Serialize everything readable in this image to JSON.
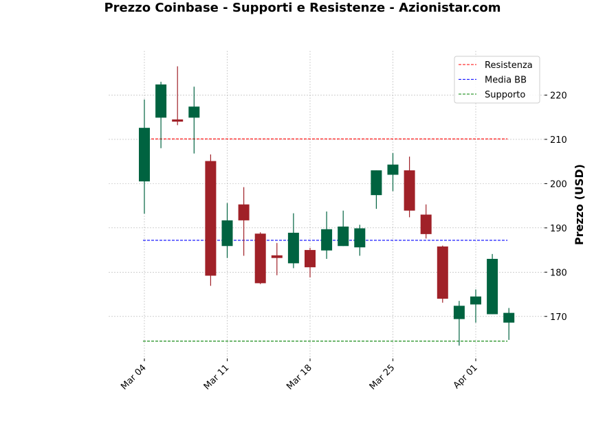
{
  "chart_data": {
    "type": "candlestick",
    "title": "Prezzo Coinbase - Supporti e Resistenze - Azionistar.com",
    "xlabel": "",
    "ylabel": "Prezzo (USD)",
    "ylim": [
      160.5,
      230
    ],
    "y_ticks": [
      170,
      180,
      190,
      200,
      210,
      220
    ],
    "x_ticks": [
      {
        "index": 0,
        "label": "Mar 04"
      },
      {
        "index": 5,
        "label": "Mar 11"
      },
      {
        "index": 10,
        "label": "Mar 18"
      },
      {
        "index": 15,
        "label": "Mar 25"
      },
      {
        "index": 20,
        "label": "Apr 01"
      }
    ],
    "grid": true,
    "legend_position": "top-right",
    "up_color": "#006340",
    "down_color": "#A02128",
    "candles": [
      {
        "date": "Mar 04",
        "open": 200.5,
        "high": 219.0,
        "low": 193.2,
        "close": 212.6
      },
      {
        "date": "Mar 05",
        "open": 214.9,
        "high": 223.0,
        "low": 208.0,
        "close": 222.4
      },
      {
        "date": "Mar 06",
        "open": 214.5,
        "high": 226.5,
        "low": 213.2,
        "close": 214.0
      },
      {
        "date": "Mar 07",
        "open": 214.9,
        "high": 221.9,
        "low": 206.8,
        "close": 217.4
      },
      {
        "date": "Mar 08",
        "open": 205.1,
        "high": 206.6,
        "low": 176.9,
        "close": 179.2
      },
      {
        "date": "Mar 11",
        "open": 185.9,
        "high": 195.6,
        "low": 183.2,
        "close": 191.7
      },
      {
        "date": "Mar 12",
        "open": 195.3,
        "high": 199.2,
        "low": 183.7,
        "close": 191.7
      },
      {
        "date": "Mar 13",
        "open": 188.7,
        "high": 189.0,
        "low": 177.3,
        "close": 177.5
      },
      {
        "date": "Mar 14",
        "open": 183.8,
        "high": 186.6,
        "low": 179.3,
        "close": 183.2
      },
      {
        "date": "Mar 15",
        "open": 182.0,
        "high": 193.3,
        "low": 180.9,
        "close": 188.9
      },
      {
        "date": "Mar 18",
        "open": 185.0,
        "high": 185.5,
        "low": 178.8,
        "close": 181.1
      },
      {
        "date": "Mar 19",
        "open": 184.9,
        "high": 193.7,
        "low": 183.0,
        "close": 189.7
      },
      {
        "date": "Mar 20",
        "open": 185.9,
        "high": 193.9,
        "low": 185.9,
        "close": 190.3
      },
      {
        "date": "Mar 21",
        "open": 185.6,
        "high": 190.7,
        "low": 183.7,
        "close": 189.9
      },
      {
        "date": "Mar 22",
        "open": 197.4,
        "high": 203.0,
        "low": 194.3,
        "close": 203.0
      },
      {
        "date": "Mar 25",
        "open": 202.0,
        "high": 206.9,
        "low": 198.3,
        "close": 204.3
      },
      {
        "date": "Mar 26",
        "open": 203.0,
        "high": 206.1,
        "low": 192.4,
        "close": 193.9
      },
      {
        "date": "Mar 27",
        "open": 193.0,
        "high": 195.3,
        "low": 187.6,
        "close": 188.6
      },
      {
        "date": "Mar 28",
        "open": 185.8,
        "high": 186.0,
        "low": 173.1,
        "close": 174.0
      },
      {
        "date": "Mar 29",
        "open": 169.4,
        "high": 173.5,
        "low": 163.4,
        "close": 172.4
      },
      {
        "date": "Apr 01",
        "open": 172.7,
        "high": 176.1,
        "low": 168.6,
        "close": 174.5
      },
      {
        "date": "Apr 02",
        "open": 170.5,
        "high": 184.1,
        "low": 170.5,
        "close": 183.0
      },
      {
        "date": "Apr 03",
        "open": 168.6,
        "high": 171.9,
        "low": 164.7,
        "close": 170.8
      }
    ],
    "lines": [
      {
        "name": "Resistenza",
        "value": 210.1,
        "color": "#ff0000"
      },
      {
        "name": "Media BB",
        "value": 187.2,
        "color": "#0000ff"
      },
      {
        "name": "Supporto",
        "value": 164.4,
        "color": "#008000"
      }
    ]
  }
}
